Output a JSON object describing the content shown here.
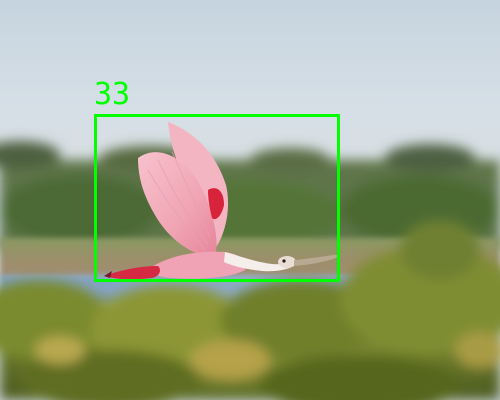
{
  "scene": {
    "subject_icon": "spoonbill-bird",
    "detection": {
      "label": "33",
      "color": "#00ff00"
    }
  }
}
